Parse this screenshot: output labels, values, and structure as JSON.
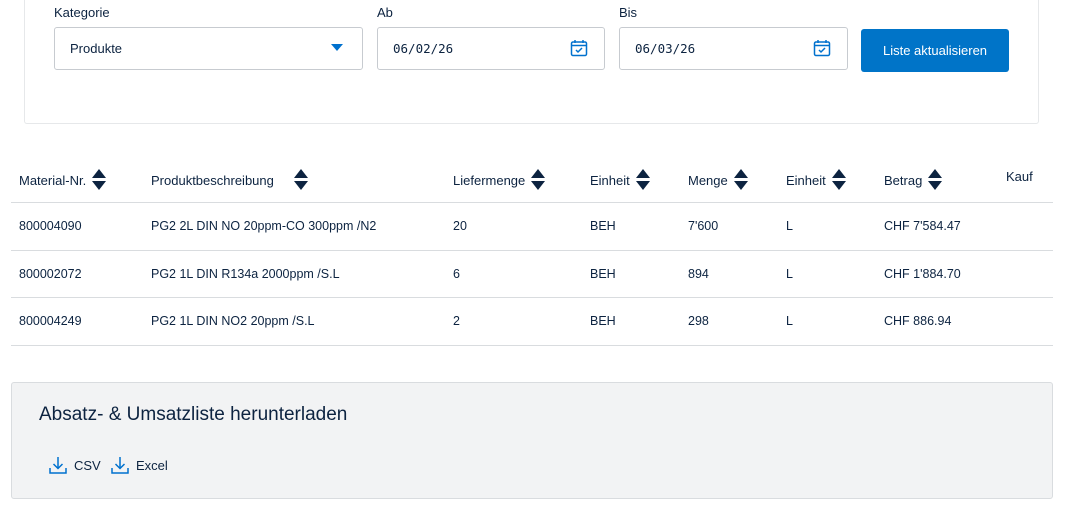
{
  "filters": {
    "category": {
      "label": "Kategorie",
      "value": "Produkte"
    },
    "from": {
      "label": "Ab",
      "value": "06/02/26"
    },
    "to": {
      "label": "Bis",
      "value": "06/03/26"
    },
    "update_button": "Liste aktualisieren"
  },
  "table": {
    "headers": {
      "material": "Material-Nr.",
      "description": "Produktbeschreibung",
      "delivery_qty": "Liefermenge",
      "unit1": "Einheit",
      "quantity": "Menge",
      "unit2": "Einheit",
      "amount": "Betrag",
      "purchase": "Kauf"
    },
    "rows": [
      {
        "material": "800004090",
        "description": "PG2 2L DIN NO 20ppm-CO 300ppm /N2",
        "delivery_qty": "20",
        "unit1": "BEH",
        "quantity": "7'600",
        "unit2": "L",
        "amount": "CHF 7'584.47"
      },
      {
        "material": "800002072",
        "description": "PG2 1L DIN R134a 2000ppm /S.L",
        "delivery_qty": "6",
        "unit1": "BEH",
        "quantity": "894",
        "unit2": "L",
        "amount": "CHF 1'884.70"
      },
      {
        "material": "800004249",
        "description": "PG2 1L DIN NO2 20ppm /S.L",
        "delivery_qty": "2",
        "unit1": "BEH",
        "quantity": "298",
        "unit2": "L",
        "amount": "CHF 886.94"
      }
    ]
  },
  "download": {
    "title": "Absatz- & Umsatzliste herunterladen",
    "csv_label": "CSV",
    "excel_label": "Excel"
  },
  "colors": {
    "primary": "#0074c8",
    "text": "#0c2340",
    "panel": "#f2f3f4",
    "border": "#d9dcdf"
  }
}
